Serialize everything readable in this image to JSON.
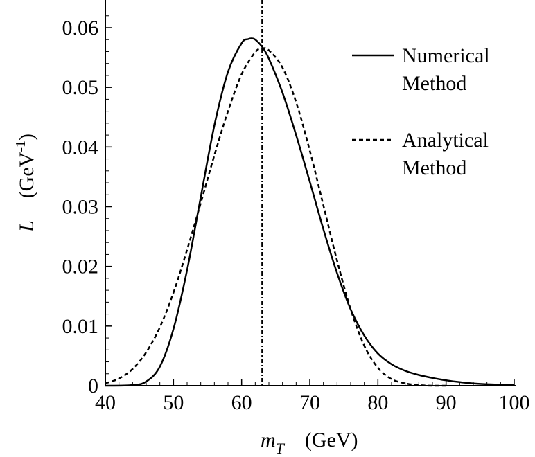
{
  "chart_data": {
    "type": "line",
    "xlim": [
      40,
      100
    ],
    "ylim": [
      0,
      0.06
    ],
    "xticks": [
      40,
      50,
      60,
      70,
      80,
      90,
      100
    ],
    "yticks": [
      0,
      0.01,
      0.02,
      0.03,
      0.04,
      0.05,
      0.06
    ],
    "xtick_labels": [
      "40",
      "50",
      "60",
      "70",
      "80",
      "90",
      "100"
    ],
    "ytick_labels": [
      "0",
      "0.01",
      "0.02",
      "0.03",
      "0.04",
      "0.05",
      "0.06"
    ],
    "xlabel": {
      "symbol": "m",
      "subscript": "T",
      "units": "(GeV)"
    },
    "ylabel": {
      "symbol": "L",
      "units_pre": "(GeV",
      "units_sup": "-1",
      "units_post": ")"
    },
    "vertical_line": {
      "x": 63,
      "style": "dash-dot"
    },
    "legend": {
      "placement": "top-right",
      "entries": [
        {
          "line1": "Numerical",
          "line2": "Method",
          "style": "solid"
        },
        {
          "line1": "Analytical",
          "line2": "Method",
          "style": "dashed"
        }
      ]
    },
    "series": [
      {
        "name": "Numerical Method",
        "style": "solid",
        "x": [
          40,
          44,
          46,
          48,
          50,
          52,
          54,
          56,
          58,
          60,
          61,
          61.5,
          62,
          63,
          64,
          66,
          68,
          70,
          72,
          74,
          76,
          78,
          80,
          82,
          84,
          86,
          88,
          90,
          92,
          95,
          100
        ],
        "y": [
          0,
          0.0001,
          0.0007,
          0.0032,
          0.0095,
          0.0194,
          0.0316,
          0.0436,
          0.0526,
          0.0574,
          0.0581,
          0.0582,
          0.058,
          0.0568,
          0.0548,
          0.0491,
          0.042,
          0.0342,
          0.0262,
          0.0189,
          0.0128,
          0.0084,
          0.0054,
          0.0036,
          0.0025,
          0.0018,
          0.0013,
          0.0009,
          0.0006,
          0.0003,
          0.0001
        ]
      },
      {
        "name": "Analytical Method",
        "style": "dashed",
        "x": [
          40,
          42,
          44,
          46,
          48,
          50,
          52,
          54,
          56,
          58,
          60,
          62,
          63,
          64,
          66,
          68,
          70,
          72,
          74,
          76,
          78,
          80,
          82,
          84,
          86,
          88,
          90
        ],
        "y": [
          0.0004,
          0.0012,
          0.0028,
          0.0056,
          0.0098,
          0.0156,
          0.0228,
          0.0306,
          0.0386,
          0.046,
          0.0522,
          0.0559,
          0.0565,
          0.0562,
          0.0533,
          0.0475,
          0.0394,
          0.0302,
          0.021,
          0.0128,
          0.0067,
          0.003,
          0.0011,
          0.0004,
          0.0001,
          0,
          0
        ]
      }
    ]
  }
}
